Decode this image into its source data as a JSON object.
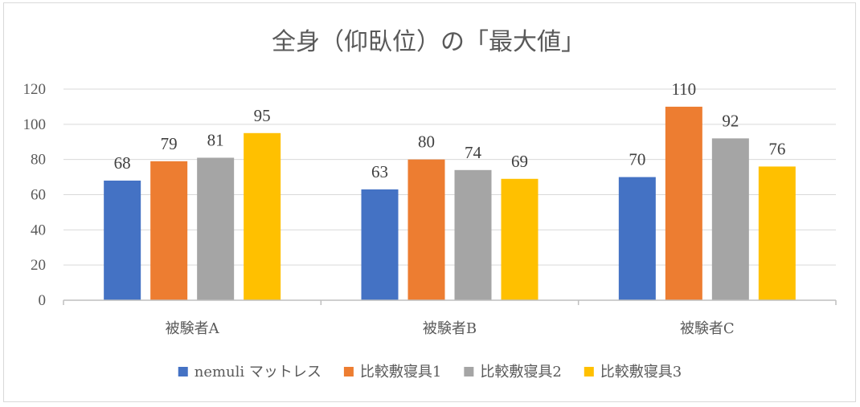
{
  "chart_data": {
    "type": "bar",
    "title": "全身（仰臥位）の「最大値」",
    "categories": [
      "被験者A",
      "被験者B",
      "被験者C"
    ],
    "series": [
      {
        "name": "nemuli マットレス",
        "color": "#4472c4",
        "values": [
          68,
          63,
          70
        ]
      },
      {
        "name": "比較敷寝具1",
        "color": "#ed7d31",
        "values": [
          79,
          80,
          110
        ]
      },
      {
        "name": "比較敷寝具2",
        "color": "#a5a5a5",
        "values": [
          81,
          74,
          92
        ]
      },
      {
        "name": "比較敷寝具3",
        "color": "#ffc000",
        "values": [
          95,
          69,
          76
        ]
      }
    ],
    "ylim": [
      0,
      120
    ],
    "yticks": [
      0,
      20,
      40,
      60,
      80,
      100,
      120
    ],
    "xlabel": "",
    "ylabel": "",
    "grid": true,
    "legend": "bottom",
    "colors": {
      "grid": "#d9d9d9",
      "axis": "#bfbfbf",
      "text": "#595959"
    }
  }
}
